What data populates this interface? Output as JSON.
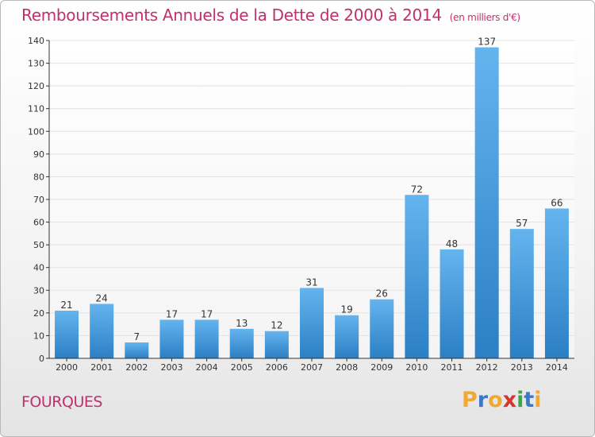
{
  "title": "Remboursements Annuels de la Dette de 2000 à 2014",
  "subtitle": "(en milliers d'€)",
  "commune": "FOURQUES",
  "logo": {
    "text": "Proxiti",
    "letters": [
      {
        "ch": "P",
        "color": "#f0a830"
      },
      {
        "ch": "r",
        "color": "#3c78c8"
      },
      {
        "ch": "o",
        "color": "#f0a830"
      },
      {
        "ch": "x",
        "color": "#d8342c"
      },
      {
        "ch": "i",
        "color": "#3aa84a"
      },
      {
        "ch": "t",
        "color": "#3c78c8"
      },
      {
        "ch": "i",
        "color": "#f0a830"
      }
    ]
  },
  "colors": {
    "title": "#c0306b",
    "bar_top": "#64b4ee",
    "bar_bottom": "#2b7fc4",
    "grid": "#e2e2e2",
    "axis": "#333333"
  },
  "chart_data": {
    "type": "bar",
    "categories": [
      "2000",
      "2001",
      "2002",
      "2003",
      "2004",
      "2005",
      "2006",
      "2007",
      "2008",
      "2009",
      "2010",
      "2011",
      "2012",
      "2013",
      "2014"
    ],
    "values": [
      21,
      24,
      7,
      17,
      17,
      13,
      12,
      31,
      19,
      26,
      72,
      48,
      137,
      57,
      66
    ],
    "ylim": [
      0,
      140
    ],
    "yticks": [
      0,
      10,
      20,
      30,
      40,
      50,
      60,
      70,
      80,
      90,
      100,
      110,
      120,
      130,
      140
    ],
    "grid": true,
    "data_labels": true
  }
}
